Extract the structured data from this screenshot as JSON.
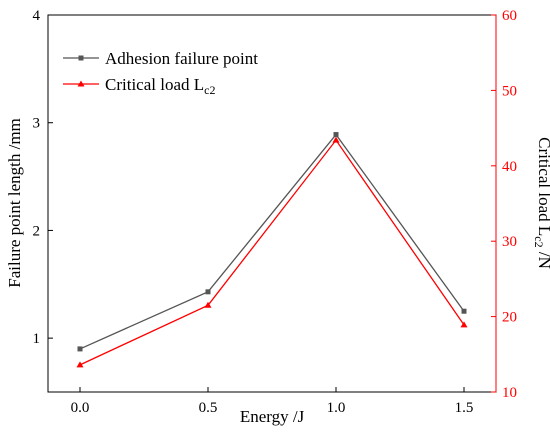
{
  "chart_data": {
    "type": "line",
    "x": [
      0.0,
      0.5,
      1.0,
      1.5
    ],
    "xlim": [
      -0.125,
      1.625
    ],
    "xticks": [
      0.0,
      0.5,
      1.0,
      1.5
    ],
    "xtick_labels": [
      "0.0",
      "0.5",
      "1.0",
      "1.5"
    ],
    "xlabel": "Energy /J",
    "ylabel_left": "Failure point length /mm",
    "ylim_left": [
      0.5,
      4
    ],
    "yticks_left": [
      1,
      2,
      3,
      4
    ],
    "ytick_labels_left": [
      "1",
      "2",
      "3",
      "4"
    ],
    "ylabel_right": {
      "main": "Critical load L",
      "sub": "c2",
      "tail": " /N"
    },
    "ylim_right": [
      10,
      60
    ],
    "yticks_right": [
      10,
      20,
      30,
      40,
      50,
      60
    ],
    "ytick_labels_right": [
      "10",
      "20",
      "30",
      "40",
      "50",
      "60"
    ],
    "right_axis_color": "#ff0000",
    "grid": false,
    "legend_position": "top-left",
    "series": [
      {
        "name": "Adhesion failure point",
        "axis": "left",
        "color": "#555555",
        "marker": "square",
        "values": [
          0.9,
          1.43,
          2.89,
          1.25
        ]
      },
      {
        "name": {
          "main": "Critical load L",
          "sub": "c2"
        },
        "axis": "right",
        "color": "#ff0000",
        "marker": "triangle",
        "values": [
          13.6,
          21.5,
          43.4,
          18.9
        ]
      }
    ]
  }
}
